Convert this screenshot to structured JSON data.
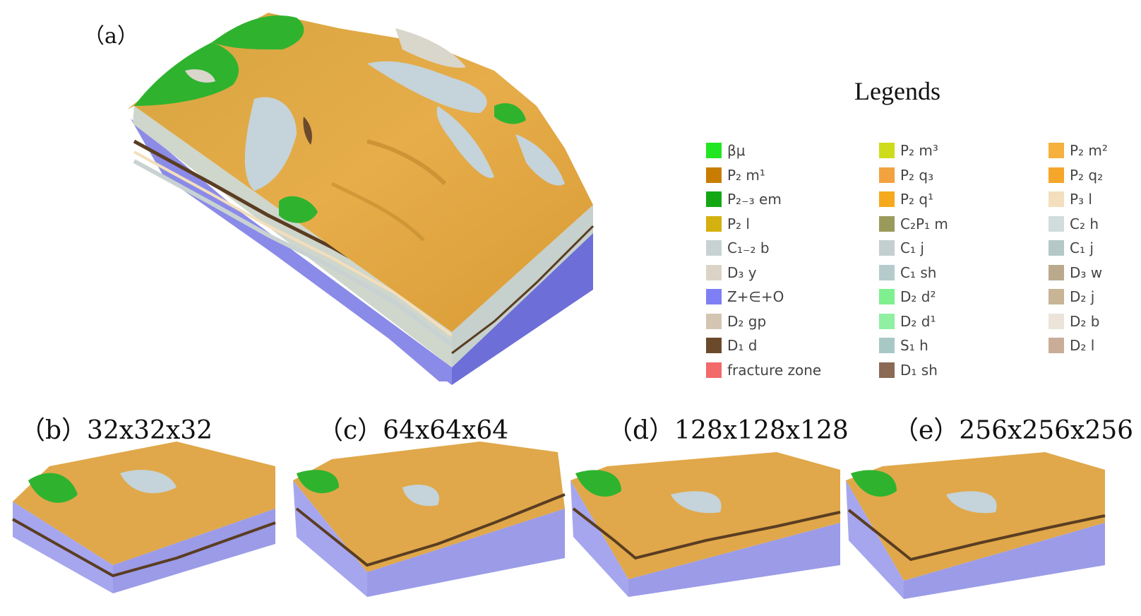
{
  "panels": {
    "a": "（a）",
    "b": "（b）32x32x32",
    "c": "（c）64x64x64",
    "d": "（d）128x128x128",
    "e": "（e）256x256x256"
  },
  "legend": {
    "title": "Legends",
    "columns": [
      [
        {
          "label": "βμ",
          "color": "#22e622"
        },
        {
          "label": "P₂ m¹",
          "color": "#c97d00"
        },
        {
          "label": "P₂₋₃ em",
          "color": "#13a813"
        },
        {
          "label": "P₂ l",
          "color": "#d4b10f"
        },
        {
          "label": "C₁₋₂ b",
          "color": "#c9d2d2"
        },
        {
          "label": "D₃ y",
          "color": "#dbd4c6"
        },
        {
          "label": "Z+∈+O",
          "color": "#7f7ff5"
        },
        {
          "label": "D₂ gp",
          "color": "#d4c5b3"
        },
        {
          "label": "D₁ d",
          "color": "#6b4a2c"
        },
        {
          "label": "fracture zone",
          "color": "#f26a6a"
        }
      ],
      [
        {
          "label": "P₂ m³",
          "color": "#cfdc1b"
        },
        {
          "label": "P₂ q₃",
          "color": "#f2a23f"
        },
        {
          "label": "P₂ q¹",
          "color": "#f5a91c"
        },
        {
          "label": "C₂P₁ m",
          "color": "#9a9a5c"
        },
        {
          "label": "C₁ j",
          "color": "#c4d0cf"
        },
        {
          "label": "C₁ sh",
          "color": "#b6cccc"
        },
        {
          "label": "D₂ d²",
          "color": "#7fef8f"
        },
        {
          "label": "D₂ d¹",
          "color": "#8ff0a2"
        },
        {
          "label": "S₁ h",
          "color": "#a8c8c6"
        },
        {
          "label": "D₁ sh",
          "color": "#8a6a55"
        }
      ],
      [
        {
          "label": "P₂ m²",
          "color": "#f6b03d"
        },
        {
          "label": "P₂ q₂",
          "color": "#f6a62a"
        },
        {
          "label": "P₃ l",
          "color": "#f3dfbd"
        },
        {
          "label": "C₂ h",
          "color": "#d1dcdc"
        },
        {
          "label": "C₁ j",
          "color": "#b4c8c8"
        },
        {
          "label": "D₃ w",
          "color": "#bba98e"
        },
        {
          "label": "D₂ j",
          "color": "#c8b596"
        },
        {
          "label": "D₂ b",
          "color": "#ece3d9"
        },
        {
          "label": "D₂ l",
          "color": "#c9ad98"
        }
      ]
    ]
  },
  "colors": {
    "basement": "#7f7ff5",
    "surface_orange": "#e3a53e",
    "surface_green": "#2fb32f",
    "surface_grey": "#c5d3da",
    "dark_band": "#5a3d22"
  }
}
